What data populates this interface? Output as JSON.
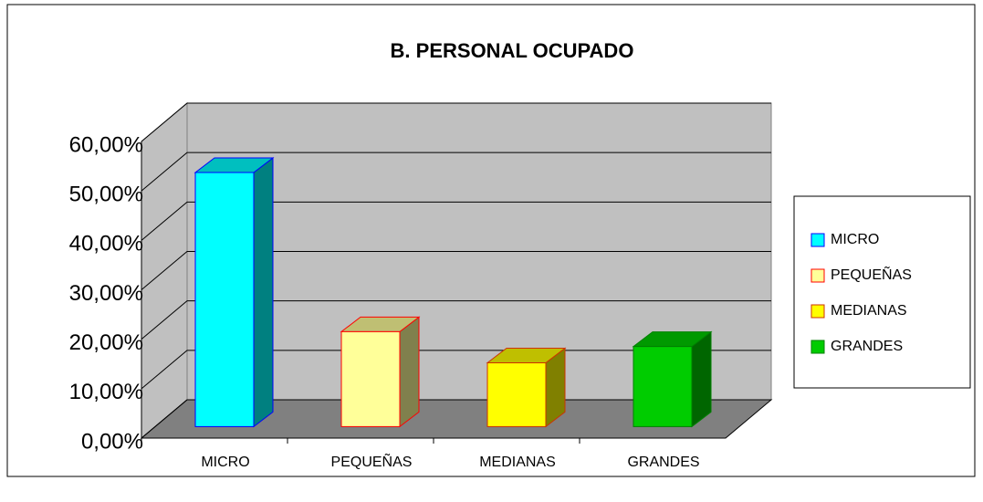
{
  "chart_data": {
    "type": "bar3d",
    "title": "B. PERSONAL OCUPADO",
    "categories": [
      "MICRO",
      "PEQUEÑAS",
      "MEDIANAS",
      "GRANDES"
    ],
    "values": [
      51.4,
      19.2,
      12.9,
      16.2
    ],
    "colors": [
      "#00FFFF",
      "#FFFF99",
      "#FFFF00",
      "#00CC00"
    ],
    "ylim": [
      0,
      60
    ],
    "yticks": [
      {
        "value": 0,
        "label": "0,00%"
      },
      {
        "value": 10,
        "label": "10,00%"
      },
      {
        "value": 20,
        "label": "20,00%"
      },
      {
        "value": 30,
        "label": "30,00%"
      },
      {
        "value": 40,
        "label": "40,00%"
      },
      {
        "value": 50,
        "label": "50,00%"
      },
      {
        "value": 60,
        "label": "60,00%"
      }
    ],
    "grid": true,
    "legend": "right"
  }
}
